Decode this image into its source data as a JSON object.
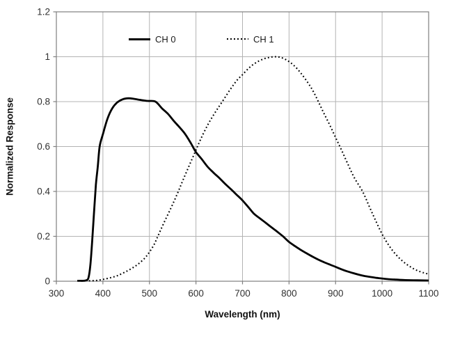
{
  "chart_data": {
    "type": "line",
    "xlabel": "Wavelength (nm)",
    "ylabel": "Normalized Response",
    "xlim": [
      300,
      1100
    ],
    "ylim": [
      0,
      1.2
    ],
    "x_tick_labels": [
      "300",
      "400",
      "500",
      "600",
      "700",
      "800",
      "900",
      "1000",
      "1100"
    ],
    "y_tick_labels": [
      "0",
      "0.2",
      "0.4",
      "0.6",
      "0.8",
      "1",
      "1.2"
    ],
    "grid": true,
    "legend": {
      "position": "top-inside",
      "entries": [
        "CH 0",
        "CH 1"
      ]
    },
    "colors": {
      "curve": "#000000",
      "gridline": "#b3b3b3",
      "frame": "#7f7f7f",
      "tick": "#7f7f7f",
      "tick_label": "#303030",
      "background": "#ffffff"
    },
    "series": [
      {
        "name": "CH 0",
        "line_style": "solid",
        "color": "#000000",
        "points": [
          [
            345,
            0.002
          ],
          [
            352,
            0.002
          ],
          [
            358,
            0.002
          ],
          [
            364,
            0.004
          ],
          [
            369,
            0.015
          ],
          [
            373,
            0.07
          ],
          [
            377,
            0.18
          ],
          [
            381,
            0.31
          ],
          [
            385,
            0.43
          ],
          [
            389,
            0.51
          ],
          [
            393,
            0.6
          ],
          [
            400,
            0.655
          ],
          [
            410,
            0.725
          ],
          [
            420,
            0.77
          ],
          [
            430,
            0.795
          ],
          [
            442,
            0.81
          ],
          [
            455,
            0.815
          ],
          [
            468,
            0.812
          ],
          [
            482,
            0.807
          ],
          [
            497,
            0.803
          ],
          [
            513,
            0.8
          ],
          [
            527,
            0.77
          ],
          [
            540,
            0.745
          ],
          [
            552,
            0.715
          ],
          [
            565,
            0.685
          ],
          [
            577,
            0.655
          ],
          [
            589,
            0.615
          ],
          [
            600,
            0.575
          ],
          [
            612,
            0.545
          ],
          [
            625,
            0.51
          ],
          [
            638,
            0.483
          ],
          [
            650,
            0.46
          ],
          [
            663,
            0.433
          ],
          [
            675,
            0.41
          ],
          [
            688,
            0.384
          ],
          [
            700,
            0.36
          ],
          [
            713,
            0.329
          ],
          [
            725,
            0.3
          ],
          [
            738,
            0.279
          ],
          [
            750,
            0.26
          ],
          [
            763,
            0.239
          ],
          [
            775,
            0.22
          ],
          [
            788,
            0.198
          ],
          [
            800,
            0.175
          ],
          [
            813,
            0.156
          ],
          [
            825,
            0.14
          ],
          [
            838,
            0.124
          ],
          [
            850,
            0.11
          ],
          [
            863,
            0.096
          ],
          [
            875,
            0.085
          ],
          [
            888,
            0.074
          ],
          [
            900,
            0.064
          ],
          [
            913,
            0.053
          ],
          [
            925,
            0.044
          ],
          [
            938,
            0.036
          ],
          [
            950,
            0.029
          ],
          [
            963,
            0.023
          ],
          [
            975,
            0.019
          ],
          [
            988,
            0.015
          ],
          [
            1000,
            0.012
          ],
          [
            1015,
            0.009
          ],
          [
            1030,
            0.007
          ],
          [
            1050,
            0.005
          ],
          [
            1075,
            0.004
          ],
          [
            1100,
            0.003
          ]
        ]
      },
      {
        "name": "CH 1",
        "line_style": "dotted",
        "color": "#000000",
        "points": [
          [
            370,
            0.002
          ],
          [
            385,
            0.003
          ],
          [
            400,
            0.008
          ],
          [
            415,
            0.015
          ],
          [
            430,
            0.024
          ],
          [
            445,
            0.038
          ],
          [
            460,
            0.055
          ],
          [
            475,
            0.075
          ],
          [
            490,
            0.103
          ],
          [
            500,
            0.13
          ],
          [
            510,
            0.163
          ],
          [
            518,
            0.2
          ],
          [
            530,
            0.255
          ],
          [
            546,
            0.325
          ],
          [
            560,
            0.39
          ],
          [
            572,
            0.45
          ],
          [
            585,
            0.513
          ],
          [
            598,
            0.575
          ],
          [
            610,
            0.632
          ],
          [
            625,
            0.695
          ],
          [
            640,
            0.748
          ],
          [
            655,
            0.795
          ],
          [
            673,
            0.852
          ],
          [
            688,
            0.895
          ],
          [
            700,
            0.92
          ],
          [
            715,
            0.952
          ],
          [
            730,
            0.975
          ],
          [
            745,
            0.99
          ],
          [
            758,
            0.997
          ],
          [
            770,
            1.0
          ],
          [
            782,
            0.997
          ],
          [
            795,
            0.985
          ],
          [
            810,
            0.962
          ],
          [
            825,
            0.928
          ],
          [
            840,
            0.886
          ],
          [
            852,
            0.846
          ],
          [
            863,
            0.8
          ],
          [
            875,
            0.748
          ],
          [
            888,
            0.694
          ],
          [
            900,
            0.64
          ],
          [
            912,
            0.588
          ],
          [
            925,
            0.528
          ],
          [
            940,
            0.462
          ],
          [
            958,
            0.4
          ],
          [
            972,
            0.335
          ],
          [
            985,
            0.275
          ],
          [
            1000,
            0.21
          ],
          [
            1015,
            0.158
          ],
          [
            1030,
            0.118
          ],
          [
            1045,
            0.088
          ],
          [
            1060,
            0.065
          ],
          [
            1075,
            0.048
          ],
          [
            1090,
            0.037
          ],
          [
            1100,
            0.032
          ]
        ]
      }
    ]
  }
}
